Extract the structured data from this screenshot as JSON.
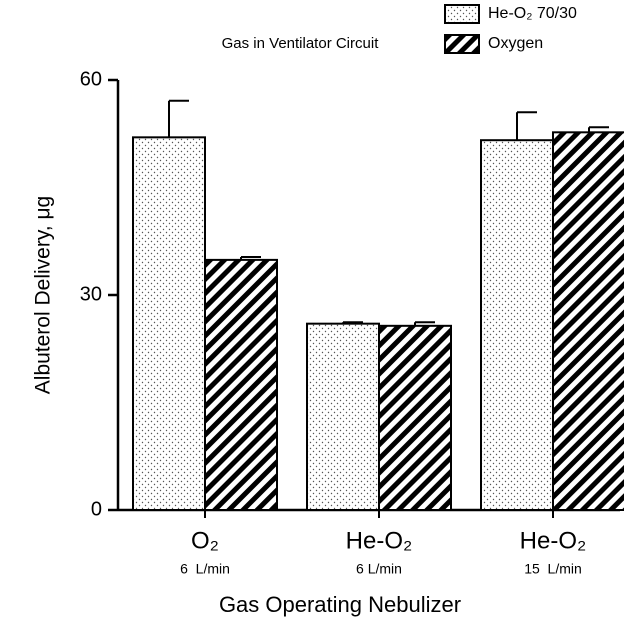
{
  "chart_data": {
    "type": "bar",
    "legend_title": "Gas in Ventilator Circuit",
    "x_label": "Gas Operating Nebulizer",
    "y_label": "Albuterol Delivery, μg",
    "categories": [
      "O₂",
      "He-O₂",
      "He-O₂"
    ],
    "category_sublabels": [
      "6  L/min",
      "6 L/min",
      "15  L/min"
    ],
    "series": [
      {
        "name": "He-O₂ 70/30",
        "pattern": "dots",
        "color": "#000000",
        "values": [
          52.0,
          26.0,
          51.6
        ],
        "errors": [
          5.1,
          0.2,
          3.9
        ]
      },
      {
        "name": "Oxygen",
        "pattern": "hatch",
        "color": "#000000",
        "values": [
          34.9,
          25.7,
          52.7
        ],
        "errors": [
          0.4,
          0.5,
          0.7
        ]
      }
    ],
    "ylim": [
      0,
      60
    ],
    "yticks": [
      0,
      30,
      60
    ]
  }
}
